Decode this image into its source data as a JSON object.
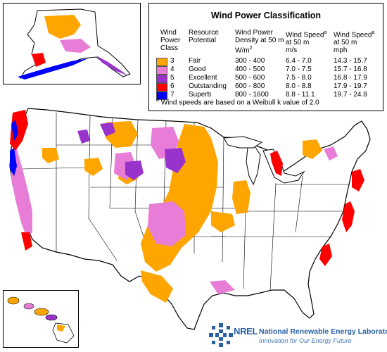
{
  "legend": {
    "title": "Wind Power Classification",
    "headers": {
      "class": [
        "Wind",
        "Power",
        "Class"
      ],
      "potential": [
        "Resource",
        "Potential"
      ],
      "density": [
        "Wind Power",
        "Density at 50 m",
        "W/m"
      ],
      "density_sup": "2",
      "speed_ms": [
        "Wind Speed",
        "at 50 m",
        "m/s"
      ],
      "speed_mph": [
        "Wind Speed",
        "at 50 m",
        "mph"
      ],
      "speed_sup": "a"
    },
    "rows": [
      {
        "class": "3",
        "potential": "Fair",
        "density": "300 - 400",
        "speed_ms": "6.4 - 7.0",
        "speed_mph": "14.3 - 15.7",
        "color": "#FFA500"
      },
      {
        "class": "4",
        "potential": "Good",
        "density": "400 - 500",
        "speed_ms": "7.0 - 7.5",
        "speed_mph": "15.7 - 16.8",
        "color": "#E87DD8"
      },
      {
        "class": "5",
        "potential": "Excellent",
        "density": "500 - 600",
        "speed_ms": "7.5 - 8.0",
        "speed_mph": "16.8 - 17.9",
        "color": "#9933CC"
      },
      {
        "class": "6",
        "potential": "Outstanding",
        "density": "600 - 800",
        "speed_ms": "8.0 - 8.8",
        "speed_mph": "17.9 - 19.7",
        "color": "#FF0000"
      },
      {
        "class": "7",
        "potential": "Superb",
        "density": "800 - 1600",
        "speed_ms": "8.8 - 11.1",
        "speed_mph": "19.7 - 24.8",
        "color": "#0000FF"
      }
    ],
    "footnote_sup": "a",
    "footnote": "Wind speeds are based on a Weibull k value of 2.0"
  },
  "logo": {
    "wordmark": "NREL",
    "lab_name": "National Renewable Energy Laboratory",
    "tagline": "Innovation for Our Energy Future",
    "color": "#2a61a5"
  },
  "map_colors": {
    "land": "#FFFFFF",
    "borders": "#000000",
    "class3": "#FFA500",
    "class4": "#E87DD8",
    "class5": "#9933CC",
    "class6": "#FF0000",
    "class7": "#0000FF"
  }
}
